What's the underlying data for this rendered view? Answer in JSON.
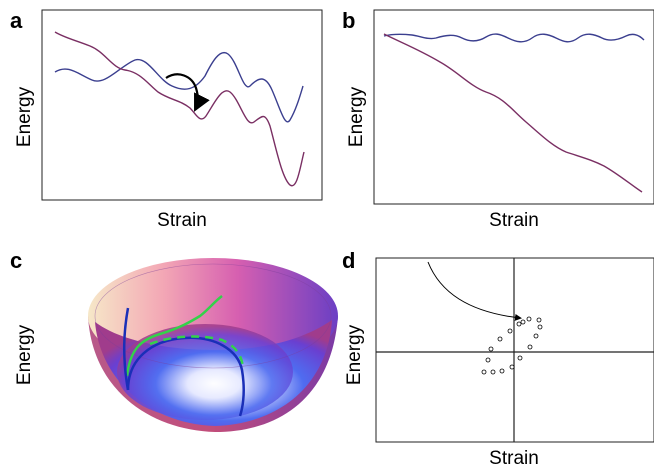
{
  "figure": {
    "panels": [
      {
        "letter": "a",
        "xlabel": "Strain",
        "ylabel": "Energy"
      },
      {
        "letter": "b",
        "xlabel": "Strain",
        "ylabel": "Energy"
      },
      {
        "letter": "c",
        "xlabel": "",
        "ylabel": "Energy"
      },
      {
        "letter": "d",
        "xlabel": "Strain",
        "ylabel": "Energy"
      }
    ],
    "colors": {
      "blue_curve": "#3b3f8f",
      "purple_curve": "#7a2f63",
      "bowl_blue_path": "#1a2fb8",
      "bowl_green_path": "#33d24a",
      "frame": "#222222"
    }
  }
}
